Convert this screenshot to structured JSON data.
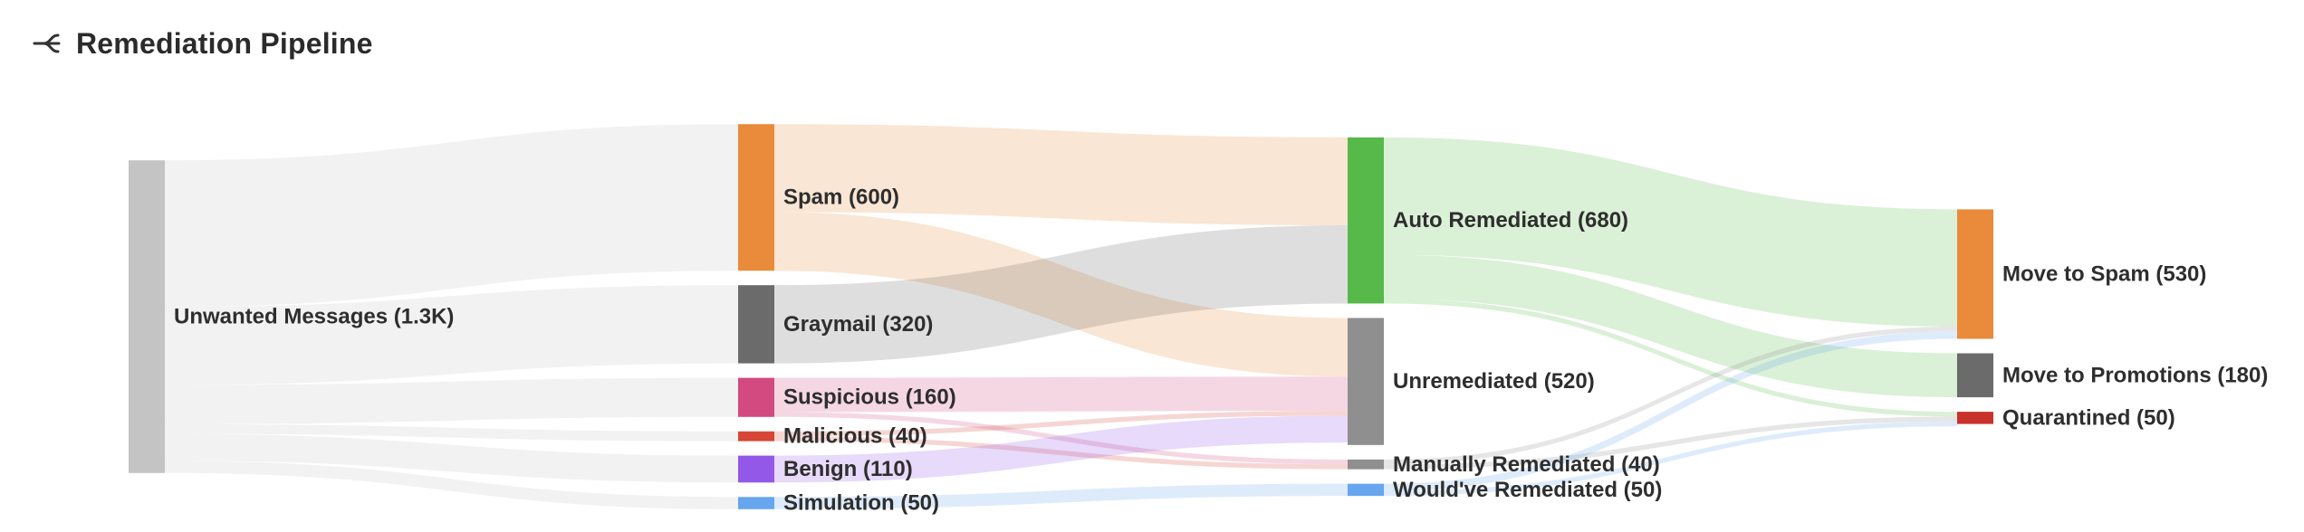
{
  "header": {
    "title": "Remediation Pipeline",
    "icon": "sankey-flow-icon"
  },
  "chart_data": {
    "type": "sankey",
    "title": "Remediation Pipeline",
    "nodes": [
      {
        "id": "unwanted",
        "label": "Unwanted Messages (1.3K)",
        "column": 0,
        "value": 1280,
        "color": "#c4c4c4"
      },
      {
        "id": "spam",
        "label": "Spam (600)",
        "column": 1,
        "value": 600,
        "color": "#e98b3a"
      },
      {
        "id": "graymail",
        "label": "Graymail (320)",
        "column": 1,
        "value": 320,
        "color": "#6b6b6b"
      },
      {
        "id": "suspicious",
        "label": "Suspicious (160)",
        "column": 1,
        "value": 160,
        "color": "#d24a7f"
      },
      {
        "id": "malicious",
        "label": "Malicious (40)",
        "column": 1,
        "value": 40,
        "color": "#d64535"
      },
      {
        "id": "benign",
        "label": "Benign (110)",
        "column": 1,
        "value": 110,
        "color": "#9458e8"
      },
      {
        "id": "simulation",
        "label": "Simulation (50)",
        "column": 1,
        "value": 50,
        "color": "#67a6ee"
      },
      {
        "id": "auto",
        "label": "Auto Remediated (680)",
        "column": 2,
        "value": 680,
        "color": "#58b94b"
      },
      {
        "id": "unremediated",
        "label": "Unremediated (520)",
        "column": 2,
        "value": 520,
        "color": "#8f8f8f"
      },
      {
        "id": "manual",
        "label": "Manually Remediated (40)",
        "column": 2,
        "value": 40,
        "color": "#8f8f8f"
      },
      {
        "id": "wouldve",
        "label": "Would've Remediated (50)",
        "column": 2,
        "value": 50,
        "color": "#67a6ee"
      },
      {
        "id": "movespam",
        "label": "Move to Spam (530)",
        "column": 3,
        "value": 530,
        "color": "#e98b3a"
      },
      {
        "id": "movepromo",
        "label": "Move to Promotions (180)",
        "column": 3,
        "value": 180,
        "color": "#6b6b6b"
      },
      {
        "id": "quarantined",
        "label": "Quarantined (50)",
        "column": 3,
        "value": 50,
        "color": "#c8322a"
      }
    ],
    "links": [
      {
        "source": "unwanted",
        "target": "spam",
        "value": 600
      },
      {
        "source": "unwanted",
        "target": "graymail",
        "value": 320
      },
      {
        "source": "unwanted",
        "target": "suspicious",
        "value": 160
      },
      {
        "source": "unwanted",
        "target": "malicious",
        "value": 40
      },
      {
        "source": "unwanted",
        "target": "benign",
        "value": 110
      },
      {
        "source": "unwanted",
        "target": "simulation",
        "value": 50
      },
      {
        "source": "spam",
        "target": "auto",
        "value": 360
      },
      {
        "source": "spam",
        "target": "unremediated",
        "value": 240
      },
      {
        "source": "graymail",
        "target": "auto",
        "value": 320
      },
      {
        "source": "suspicious",
        "target": "unremediated",
        "value": 140
      },
      {
        "source": "suspicious",
        "target": "manual",
        "value": 20
      },
      {
        "source": "malicious",
        "target": "unremediated",
        "value": 20
      },
      {
        "source": "malicious",
        "target": "manual",
        "value": 20
      },
      {
        "source": "benign",
        "target": "unremediated",
        "value": 110
      },
      {
        "source": "simulation",
        "target": "wouldve",
        "value": 50
      },
      {
        "source": "auto",
        "target": "movespam",
        "value": 480
      },
      {
        "source": "auto",
        "target": "movepromo",
        "value": 180
      },
      {
        "source": "auto",
        "target": "quarantined",
        "value": 20
      },
      {
        "source": "manual",
        "target": "movespam",
        "value": 20
      },
      {
        "source": "manual",
        "target": "quarantined",
        "value": 20
      },
      {
        "source": "wouldve",
        "target": "movespam",
        "value": 30
      },
      {
        "source": "wouldve",
        "target": "quarantined",
        "value": 20
      }
    ]
  }
}
